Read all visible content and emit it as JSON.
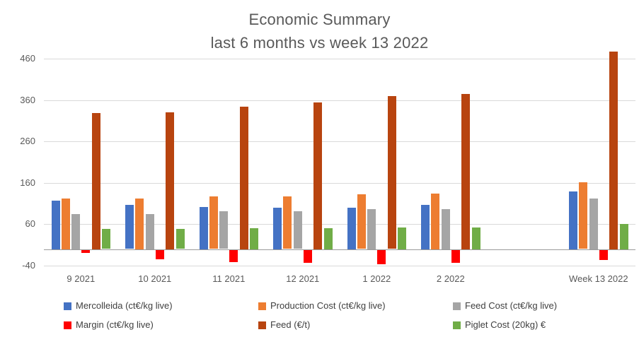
{
  "title": {
    "line1": "Economic Summary",
    "line2": "last 6 months vs week 13 2022"
  },
  "chart_data": {
    "type": "bar",
    "title": "Economic Summary last 6 months vs week 13 2022",
    "categories": [
      "9 2021",
      "10 2021",
      "11 2021",
      "12 2021",
      "1 2022",
      "2 2022",
      "Week 13 2022"
    ],
    "series": [
      {
        "name": "Mercolleida (ct€/kg live)",
        "color": "#4472C4",
        "values": [
          117,
          106,
          102,
          100,
          100,
          107,
          140
        ]
      },
      {
        "name": "Production Cost (ct€/kg live)",
        "color": "#ED7D31",
        "values": [
          123,
          123,
          127,
          127,
          133,
          134,
          161
        ]
      },
      {
        "name": "Feed Cost (ct€/kg live)",
        "color": "#A5A5A5",
        "values": [
          85,
          85,
          92,
          91,
          96,
          96,
          123
        ]
      },
      {
        "name": "Margin (ct€/kg live)",
        "color": "#FF0000",
        "values": [
          -7,
          -23,
          -29,
          -32,
          -35,
          -31,
          -24
        ]
      },
      {
        "name": "Feed (€/t)",
        "color": "#B8440F",
        "values": [
          328,
          330,
          344,
          355,
          369,
          375,
          477
        ]
      },
      {
        "name": "Piglet Cost (20kg) €",
        "color": "#70AD47",
        "values": [
          49,
          49,
          51,
          50,
          53,
          53,
          60
        ]
      }
    ],
    "yticks": [
      -40,
      60,
      160,
      260,
      360,
      460
    ],
    "ylim": [
      -40,
      460
    ],
    "grid": "horizontal",
    "legend_position": "bottom",
    "gap_slot_before_last_category": true,
    "colors": {
      "title_text": "#595959",
      "axis_text": "#595959",
      "legend_text": "#404040",
      "gridline": "#d9d9d9",
      "zero_axis": "#9a9a9a"
    }
  }
}
